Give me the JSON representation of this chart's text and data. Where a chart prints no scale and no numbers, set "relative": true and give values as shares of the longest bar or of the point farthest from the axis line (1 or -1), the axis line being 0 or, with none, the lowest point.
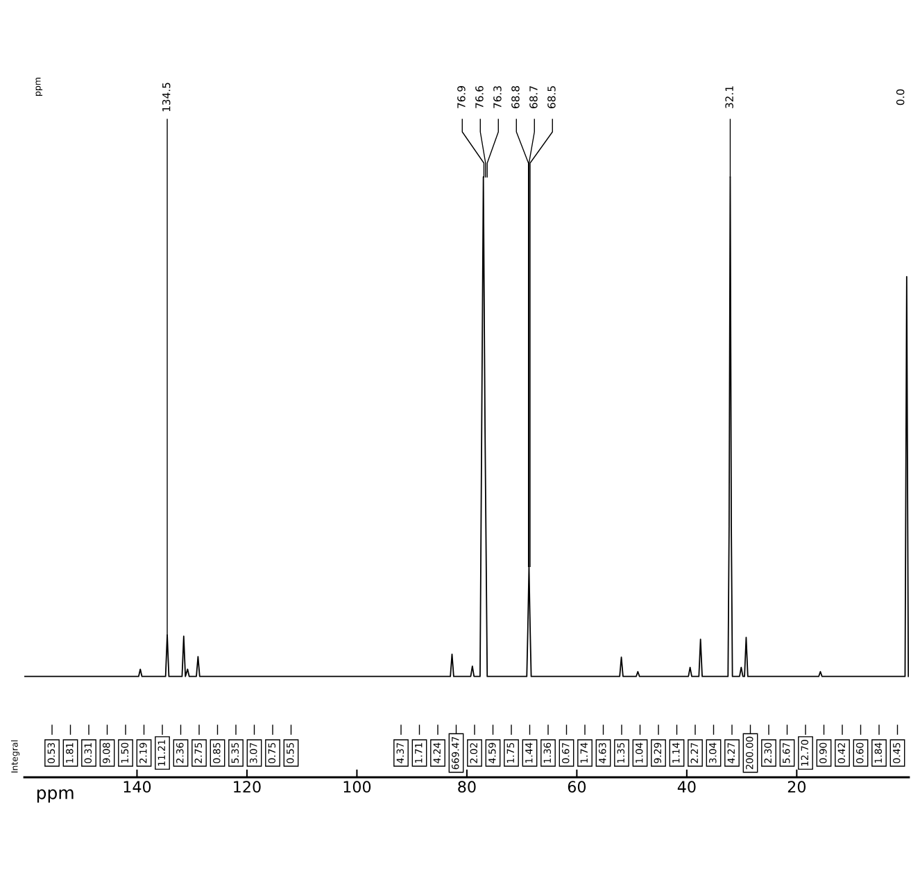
{
  "chart_data": {
    "type": "line",
    "relative": true,
    "xlabel": "ppm",
    "xlim": [
      160.5,
      -0.4
    ],
    "xticks": [
      140,
      120,
      100,
      80,
      60,
      40,
      20
    ],
    "grid": false,
    "series": [
      {
        "color": "#000000",
        "x": [
          160.5,
          139.7,
          139.4,
          139.1,
          134.8,
          134.5,
          134.2,
          131.8,
          131.5,
          131.2,
          130.8,
          130.5,
          129.2,
          128.9,
          128.6,
          83.0,
          82.7,
          82.4,
          79.3,
          79.0,
          78.7,
          77.6,
          77.3,
          77.0,
          76.7,
          76.3,
          69.1,
          68.9,
          68.7,
          68.5,
          68.3,
          52.2,
          51.9,
          51.6,
          49.2,
          48.9,
          48.6,
          39.7,
          39.4,
          39.1,
          37.8,
          37.5,
          37.2,
          32.5,
          32.3,
          32.1,
          31.9,
          31.7,
          30.4,
          30.1,
          29.8,
          29.5,
          29.2,
          28.9,
          16.0,
          15.7,
          15.4,
          0.3,
          0.0,
          -0.3
        ],
        "values": [
          0.168,
          0.168,
          0.18,
          0.168,
          0.168,
          0.237,
          0.168,
          0.168,
          0.235,
          0.168,
          0.18,
          0.168,
          0.168,
          0.201,
          0.168,
          0.168,
          0.205,
          0.168,
          0.168,
          0.185,
          0.168,
          0.168,
          0.584,
          1.0,
          0.584,
          0.168,
          0.168,
          0.251,
          0.351,
          0.251,
          0.168,
          0.168,
          0.2,
          0.168,
          0.168,
          0.176,
          0.168,
          0.168,
          0.183,
          0.168,
          0.168,
          0.23,
          0.168,
          0.168,
          0.418,
          1.0,
          0.418,
          0.168,
          0.168,
          0.183,
          0.168,
          0.168,
          0.233,
          0.168,
          0.168,
          0.176,
          0.168,
          0.168,
          0.834,
          0.168
        ]
      }
    ],
    "annotations": [
      "ppm",
      "Integral",
      {
        "text": "134.5",
        "x": 134.5,
        "y": 0.237
      },
      {
        "text": "76.9",
        "x": 76.9,
        "y": 1.0
      },
      {
        "text": "76.6",
        "x": 76.6,
        "y": 1.0
      },
      {
        "text": "76.3",
        "x": 76.3,
        "y": 1.0
      },
      {
        "text": "68.8",
        "x": 68.8,
        "y": 0.351
      },
      {
        "text": "68.7",
        "x": 68.7,
        "y": 0.351
      },
      {
        "text": "68.5",
        "x": 68.5,
        "y": 0.351
      },
      {
        "text": "32.1",
        "x": 32.1,
        "y": 1.0
      },
      "0.0",
      "0.53",
      "1.81",
      "0.31",
      "9.08",
      "1.50",
      "2.19",
      "11.21",
      "2.36",
      "2.75",
      "0.85",
      "5.35",
      "3.07",
      "0.75",
      "0.55",
      "4.37",
      "1.71",
      "4.24",
      "669.47",
      "2.02",
      "4.59",
      "1.75",
      "1.44",
      "1.36",
      "0.67",
      "1.74",
      "4.63",
      "1.35",
      "1.04",
      "9.29",
      "1.14",
      "2.27",
      "3.04",
      "4.27",
      "200.00",
      "2.30",
      "5.67",
      "12.70",
      "0.90",
      "0.42",
      "0.60",
      "1.84",
      "0.45"
    ]
  }
}
